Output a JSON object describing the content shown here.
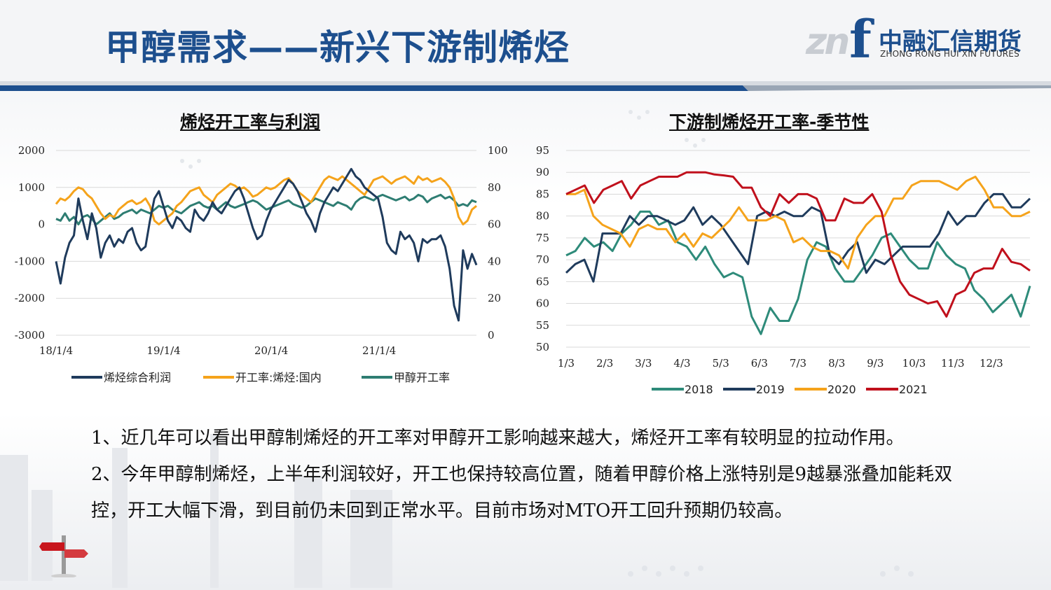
{
  "header": {
    "title": "甲醇需求——新兴下游制烯烃",
    "logo_mark": "zn",
    "logo_f": "f",
    "logo_cn": "中融汇信期货",
    "logo_en": "ZHONG RONG HUI XIN FUTURES",
    "accent_color": "#1d4f8e"
  },
  "chart_data": [
    {
      "type": "line",
      "title": "烯烃开工率与利润",
      "x_ticks": [
        "18/1/4",
        "19/1/4",
        "20/1/4",
        "21/1/4"
      ],
      "x_range": [
        "2018-01-04",
        "2021-11-30"
      ],
      "y_left_ticks": [
        "2000",
        "1000",
        "0",
        "-1000",
        "-2000",
        "-3000"
      ],
      "y_left_range": [
        -3000,
        2000
      ],
      "y_right_ticks": [
        "100",
        "80",
        "60",
        "40",
        "20",
        "0"
      ],
      "y_right_range": [
        0,
        100
      ],
      "grid": "horizontal",
      "legend_position": "bottom",
      "series": [
        {
          "name": "烯烃综合利润",
          "axis": "left",
          "color": "#1f3b5c",
          "values": [
            -1000,
            -1600,
            -900,
            -500,
            -300,
            700,
            100,
            -400,
            300,
            -100,
            -900,
            -500,
            -300,
            -600,
            -400,
            -500,
            -200,
            -100,
            -500,
            -700,
            -600,
            100,
            700,
            900,
            500,
            100,
            -100,
            200,
            100,
            -100,
            -200,
            400,
            200,
            100,
            300,
            600,
            400,
            300,
            500,
            700,
            900,
            1000,
            700,
            300,
            -100,
            -400,
            -300,
            100,
            400,
            600,
            800,
            1000,
            1200,
            1100,
            900,
            600,
            300,
            100,
            -200,
            300,
            600,
            800,
            1000,
            900,
            1100,
            1300,
            1500,
            1300,
            1200,
            1000,
            900,
            800,
            700,
            200,
            -500,
            -700,
            -800,
            -200,
            -400,
            -300,
            -500,
            -1000,
            -400,
            -500,
            -400,
            -400,
            -300,
            -600,
            -1200,
            -2200,
            -2600,
            -700,
            -1200,
            -800,
            -1100
          ]
        },
        {
          "name": "开工率:烯烃:国内",
          "axis": "right",
          "color": "#f5a31b",
          "values": [
            71,
            74,
            73,
            75,
            78,
            80,
            79,
            76,
            74,
            70,
            66,
            63,
            65,
            64,
            68,
            70,
            72,
            73,
            71,
            72,
            74,
            70,
            62,
            60,
            62,
            64,
            66,
            70,
            72,
            75,
            78,
            79,
            80,
            76,
            74,
            72,
            76,
            78,
            80,
            82,
            81,
            79,
            80,
            78,
            75,
            76,
            78,
            80,
            79,
            80,
            82,
            84,
            85,
            82,
            78,
            76,
            74,
            72,
            76,
            80,
            84,
            86,
            85,
            84,
            86,
            84,
            82,
            80,
            78,
            76,
            80,
            84,
            85,
            86,
            84,
            82,
            84,
            85,
            86,
            84,
            82,
            86,
            84,
            85,
            83,
            84,
            85,
            83,
            80,
            74,
            64,
            60,
            62,
            68,
            70
          ]
        },
        {
          "name": "甲醇开工率",
          "axis": "right",
          "color": "#2e7d72",
          "values": [
            63,
            62,
            66,
            62,
            64,
            60,
            64,
            65,
            63,
            60,
            62,
            64,
            66,
            63,
            64,
            66,
            67,
            68,
            66,
            68,
            67,
            66,
            68,
            70,
            69,
            70,
            68,
            67,
            66,
            68,
            70,
            71,
            72,
            70,
            69,
            70,
            68,
            70,
            72,
            70,
            69,
            70,
            71,
            72,
            73,
            72,
            70,
            68,
            69,
            70,
            71,
            72,
            73,
            71,
            70,
            69,
            70,
            72,
            74,
            73,
            72,
            71,
            70,
            72,
            71,
            70,
            68,
            72,
            74,
            75,
            74,
            73,
            75,
            76,
            75,
            74,
            73,
            74,
            75,
            73,
            74,
            76,
            75,
            72,
            74,
            75,
            76,
            74,
            75,
            73,
            70,
            71,
            70,
            73,
            72
          ]
        }
      ]
    },
    {
      "type": "line",
      "title": "下游制烯烃开工率-季节性",
      "x_ticks": [
        "1/3",
        "2/3",
        "3/3",
        "4/3",
        "5/3",
        "6/3",
        "7/3",
        "8/3",
        "9/3",
        "10/3",
        "11/3",
        "12/3"
      ],
      "x_range": [
        0,
        12
      ],
      "y_ticks": [
        "95",
        "90",
        "85",
        "80",
        "75",
        "70",
        "65",
        "60",
        "55",
        "50"
      ],
      "y_range": [
        50,
        95
      ],
      "grid": "horizontal",
      "legend_position": "bottom",
      "series": [
        {
          "name": "2018",
          "color": "#2e8b7a",
          "values": [
            71,
            72,
            75,
            73,
            74,
            72,
            76,
            78,
            81,
            81,
            78,
            79,
            74,
            73,
            70,
            73,
            69,
            66,
            67,
            66,
            57,
            53,
            59,
            56,
            56,
            61,
            70,
            74,
            73,
            68,
            65,
            65,
            68,
            71,
            75,
            76,
            73,
            70,
            68,
            68,
            74,
            71,
            69,
            68,
            63,
            61,
            58,
            60,
            62,
            57,
            64
          ]
        },
        {
          "name": "2019",
          "color": "#1f3b5c",
          "values": [
            67,
            69,
            70,
            65,
            76,
            76,
            76,
            80,
            78,
            80,
            80,
            79,
            78,
            79,
            82,
            78,
            80,
            78,
            75,
            72,
            69,
            80,
            81,
            80,
            81,
            80,
            80,
            82,
            81,
            71,
            69,
            72,
            74,
            67,
            70,
            69,
            71,
            73,
            73,
            73,
            73,
            76,
            81,
            78,
            80,
            80,
            83,
            85,
            85,
            82,
            82,
            84
          ]
        },
        {
          "name": "2020",
          "color": "#f5a31b",
          "values": [
            85,
            85,
            86,
            80,
            78,
            77,
            76,
            73,
            77,
            78,
            77,
            77,
            74,
            76,
            73,
            76,
            75,
            77,
            79,
            82,
            79,
            79,
            79,
            80,
            79,
            74,
            75,
            73,
            72,
            72,
            71,
            68,
            75,
            78,
            80,
            80,
            84,
            84,
            87,
            88,
            88,
            88,
            87,
            86,
            88,
            89,
            86,
            82,
            82,
            80,
            80,
            81
          ]
        },
        {
          "name": "2021",
          "color": "#c0101c",
          "values": [
            85,
            86,
            87,
            83,
            86,
            87,
            88,
            84,
            87,
            88,
            89,
            89,
            89,
            90,
            90,
            90,
            89.5,
            89.3,
            89,
            86.5,
            86.5,
            82,
            80,
            85,
            83,
            85,
            85,
            84,
            79,
            79,
            84,
            83,
            83,
            85,
            81,
            71,
            65,
            62,
            61,
            60,
            60.5,
            57,
            62,
            63,
            67,
            68,
            68,
            72.5,
            69.5,
            69,
            67.5
          ]
        }
      ]
    }
  ],
  "body": {
    "paragraph_1": "1、近几年可以看出甲醇制烯烃的开工率对甲醇开工影响越来越大，烯烃开工率有较明显的拉动作用。",
    "paragraph_2": "2、今年甲醇制烯烃，上半年利润较好，开工也保持较高位置，随着甲醇价格上涨特别是9越暴涨叠加能耗双控，开工大幅下滑，到目前仍未回到正常水平。目前市场对MTO开工回升预期仍较高。"
  }
}
